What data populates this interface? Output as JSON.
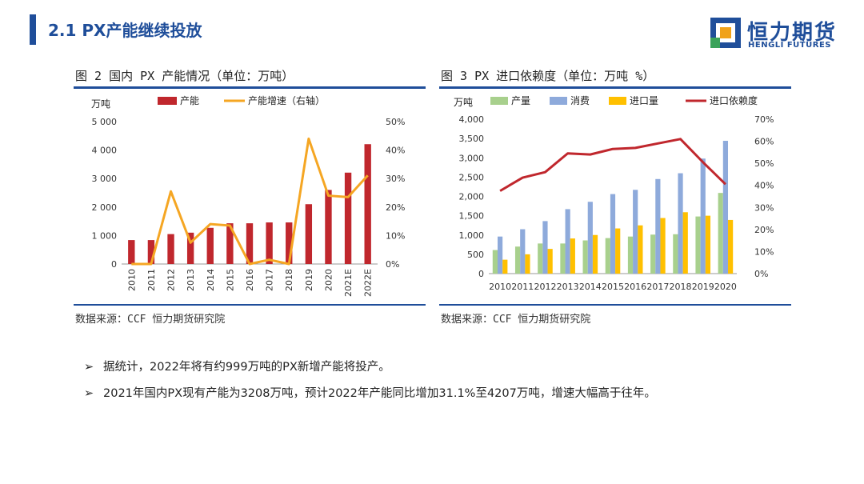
{
  "header": {
    "title": "2.1 PX产能继续投放"
  },
  "logo": {
    "cn": "恒力期货",
    "en": "HENGLI FUTURES"
  },
  "figure2": {
    "title": "图 2 国内 PX 产能情况（单位：万吨）",
    "source": "数据来源：CCF 恒力期货研究院"
  },
  "figure3": {
    "title": "图 3 PX 进口依赖度（单位：万吨 %）",
    "source": "数据来源：CCF 恒力期货研究院"
  },
  "bullets": [
    {
      "marker": "➢",
      "text": "据统计，2022年将有约999万吨的PX新增产能将投产。"
    },
    {
      "marker": "➢",
      "text": "2021年国内PX现有产能为3208万吨，预计2022年产能同比增加31.1%至4207万吨，增速大幅高于往年。"
    }
  ],
  "colors": {
    "bar_red": "#c0272d",
    "line_orange": "#f5a623",
    "green": "#a8d08d",
    "blue": "#8eaadb",
    "yellow": "#ffc000",
    "line_red": "#c0272d",
    "accent": "#1f4e9a"
  },
  "chart_data": [
    {
      "type": "bar",
      "id": "fig2",
      "unit_label": "万吨",
      "categories": [
        "2010",
        "2011",
        "2012",
        "2013",
        "2014",
        "2015",
        "2016",
        "2017",
        "2018",
        "2019",
        "2020",
        "2021E",
        "2022E"
      ],
      "series": [
        {
          "name": "产能",
          "kind": "bar",
          "axis": "left",
          "values": [
            840,
            840,
            1050,
            1100,
            1270,
            1430,
            1430,
            1460,
            1460,
            2100,
            2600,
            3208,
            4207
          ]
        },
        {
          "name": "产能增速（右轴）",
          "kind": "line",
          "axis": "right",
          "values": [
            0,
            0,
            25.5,
            7.5,
            14.0,
            13.5,
            0,
            1.5,
            0,
            44.0,
            24.0,
            23.5,
            31.1
          ]
        }
      ],
      "ylim": [
        0,
        5000
      ],
      "yticks": [
        "0",
        "1 000",
        "2 000",
        "3 000",
        "4 000",
        "5 000"
      ],
      "y2lim": [
        0,
        50
      ],
      "y2ticks": [
        "0%",
        "10%",
        "20%",
        "30%",
        "40%",
        "50%"
      ],
      "legend_position": "top"
    },
    {
      "type": "bar",
      "id": "fig3",
      "unit_label": "万吨",
      "categories": [
        "2010",
        "2011",
        "2012",
        "2013",
        "2014",
        "2015",
        "2016",
        "2017",
        "2018",
        "2019",
        "2020"
      ],
      "series": [
        {
          "name": "产量",
          "kind": "bar",
          "axis": "left",
          "values": [
            610,
            700,
            780,
            780,
            860,
            920,
            960,
            1010,
            1020,
            1480,
            2090
          ]
        },
        {
          "name": "消费",
          "kind": "bar",
          "axis": "left",
          "values": [
            960,
            1150,
            1360,
            1670,
            1860,
            2060,
            2170,
            2450,
            2600,
            2980,
            3440
          ]
        },
        {
          "name": "进口量",
          "kind": "bar",
          "axis": "left",
          "values": [
            360,
            500,
            640,
            910,
            1000,
            1170,
            1250,
            1440,
            1590,
            1500,
            1390
          ]
        },
        {
          "name": "进口依赖度",
          "kind": "line",
          "axis": "right",
          "values": [
            37.5,
            43.5,
            46.0,
            54.5,
            54.0,
            56.5,
            57.0,
            59.0,
            61.0,
            50.5,
            40.5
          ]
        }
      ],
      "ylim": [
        0,
        4000
      ],
      "yticks": [
        "0",
        "500",
        "1,000",
        "1,500",
        "2,000",
        "2,500",
        "3,000",
        "3,500",
        "4,000"
      ],
      "y2lim": [
        0,
        70
      ],
      "y2ticks": [
        "0%",
        "10%",
        "20%",
        "30%",
        "40%",
        "50%",
        "60%",
        "70%"
      ],
      "legend_position": "top"
    }
  ]
}
